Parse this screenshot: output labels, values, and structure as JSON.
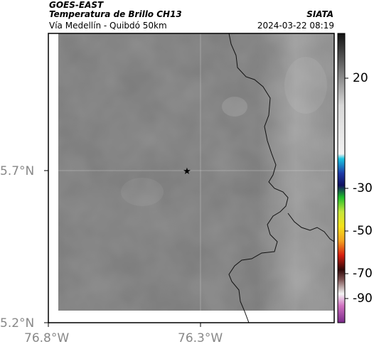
{
  "header": {
    "satellite": "GOES-EAST",
    "product": "Temperatura de Brillo CH13",
    "region": "Vía Medellín - Quibdó 50km",
    "org": "SIATA",
    "datetime": "2024-03-22 08:19"
  },
  "map": {
    "lon_ticks": [
      "76.8°W",
      "76.3°W"
    ],
    "lat_ticks": [
      "5.7°N",
      "5.2°N"
    ],
    "marker": "star-marker"
  },
  "colorbar": {
    "ticks": [
      "20",
      "-30",
      "-50",
      "-70",
      "-90"
    ],
    "stops": [
      {
        "v": 30,
        "c": "#111111"
      },
      {
        "v": 0,
        "c": "#d8d8d8"
      },
      {
        "v": -20,
        "c": "#f2f2f2"
      },
      {
        "v": -22,
        "c": "#19c4e0"
      },
      {
        "v": -28,
        "c": "#1e3aa8"
      },
      {
        "v": -33,
        "c": "#101060"
      },
      {
        "v": -38,
        "c": "#1fbf2a"
      },
      {
        "v": -44,
        "c": "#c6e63c"
      },
      {
        "v": -50,
        "c": "#f4e21a"
      },
      {
        "v": -56,
        "c": "#f4a320"
      },
      {
        "v": -62,
        "c": "#d81e10"
      },
      {
        "v": -68,
        "c": "#300808"
      },
      {
        "v": -72,
        "c": "#7a5050"
      },
      {
        "v": -78,
        "c": "#f5f5f5"
      },
      {
        "v": -83,
        "c": "#d070c0"
      },
      {
        "v": -90,
        "c": "#7a2a8a"
      }
    ]
  }
}
